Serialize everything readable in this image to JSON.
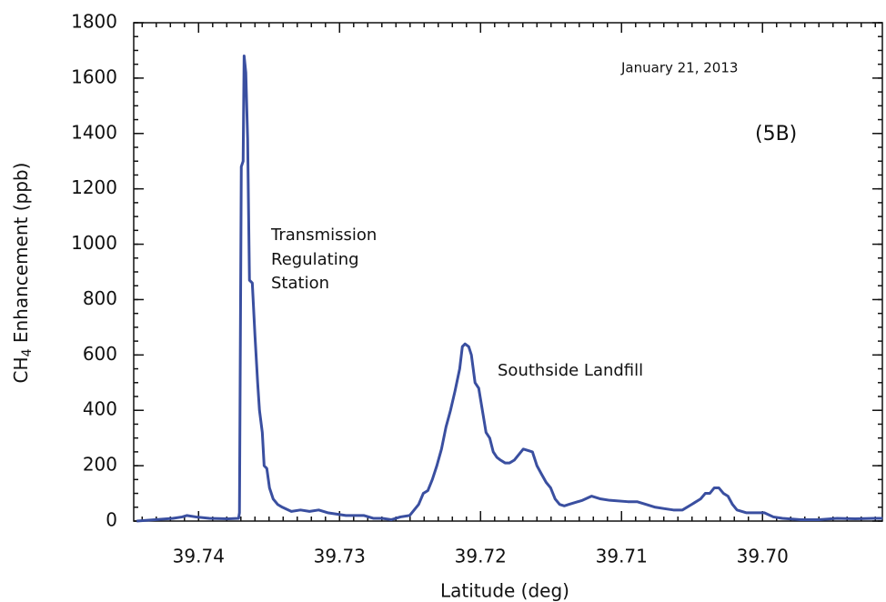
{
  "chart_data": {
    "type": "line",
    "xlabel": "Latitude (deg)",
    "ylabel": {
      "text": "CH",
      "sub": "4",
      "rest": " Enhancement (ppb)"
    },
    "annotations": {
      "date": "January 21, 2013",
      "panel": "(5B)",
      "transmission": [
        "Transmission",
        "Regulating",
        "Station"
      ],
      "landfill": "Southside Landfill"
    },
    "xlim": [
      39.7446,
      39.6915
    ],
    "xticks": [
      39.74,
      39.73,
      39.72,
      39.71,
      {
        "value": 39.7,
        "label": "39.70"
      }
    ],
    "ylim": [
      0,
      1800
    ],
    "yticks": [
      0,
      200,
      400,
      600,
      800,
      1000,
      1200,
      1400,
      1600,
      1800
    ],
    "x": [
      39.74439,
      39.7431,
      39.74181,
      39.74116,
      39.74084,
      39.74019,
      39.73923,
      39.73794,
      39.73716,
      39.7371,
      39.73697,
      39.73684,
      39.73677,
      39.73665,
      39.73652,
      39.73639,
      39.73619,
      39.736,
      39.73581,
      39.73568,
      39.73548,
      39.73535,
      39.73516,
      39.73497,
      39.73471,
      39.73439,
      39.73406,
      39.73342,
      39.73277,
      39.73213,
      39.73148,
      39.73084,
      39.73019,
      39.72955,
      39.72826,
      39.72761,
      39.72697,
      39.72632,
      39.72568,
      39.72503,
      39.72439,
      39.72406,
      39.72374,
      39.72342,
      39.7231,
      39.72277,
      39.72245,
      39.72213,
      39.72181,
      39.72148,
      39.72129,
      39.7211,
      39.72084,
      39.72065,
      39.72039,
      39.72013,
      39.71987,
      39.71961,
      39.71935,
      39.7191,
      39.71884,
      39.71858,
      39.71826,
      39.71794,
      39.71761,
      39.71729,
      39.71697,
      39.71665,
      39.71632,
      39.716,
      39.71568,
      39.71535,
      39.71503,
      39.71471,
      39.71439,
      39.71406,
      39.71374,
      39.71342,
      39.71277,
      39.71213,
      39.71148,
      39.71084,
      39.70955,
      39.7089,
      39.70826,
      39.70761,
      39.70697,
      39.70632,
      39.70568,
      39.70503,
      39.70439,
      39.70406,
      39.70374,
      39.70342,
      39.7031,
      39.70277,
      39.70245,
      39.70213,
      39.70181,
      39.70116,
      39.70052,
      39.69987,
      39.69923,
      39.69858,
      39.69729,
      39.696,
      39.69471,
      39.69342,
      39.69213,
      39.69148
    ],
    "series": [
      {
        "color": "#3a4fa0",
        "values": [
          0,
          5,
          10,
          15,
          20,
          15,
          10,
          8,
          10,
          30,
          1280,
          1300,
          1680,
          1620,
          1380,
          870,
          860,
          670,
          500,
          400,
          320,
          200,
          190,
          120,
          80,
          60,
          50,
          35,
          40,
          35,
          40,
          30,
          25,
          20,
          20,
          10,
          10,
          5,
          15,
          20,
          60,
          100,
          110,
          150,
          200,
          260,
          340,
          400,
          470,
          550,
          630,
          640,
          630,
          600,
          500,
          480,
          400,
          320,
          300,
          250,
          230,
          220,
          210,
          210,
          220,
          240,
          260,
          255,
          250,
          200,
          170,
          140,
          120,
          80,
          60,
          55,
          60,
          65,
          75,
          90,
          80,
          75,
          70,
          70,
          60,
          50,
          45,
          40,
          40,
          60,
          80,
          100,
          100,
          120,
          120,
          100,
          90,
          60,
          40,
          30,
          30,
          30,
          15,
          10,
          5,
          5,
          10,
          8,
          10,
          10
        ]
      }
    ]
  }
}
